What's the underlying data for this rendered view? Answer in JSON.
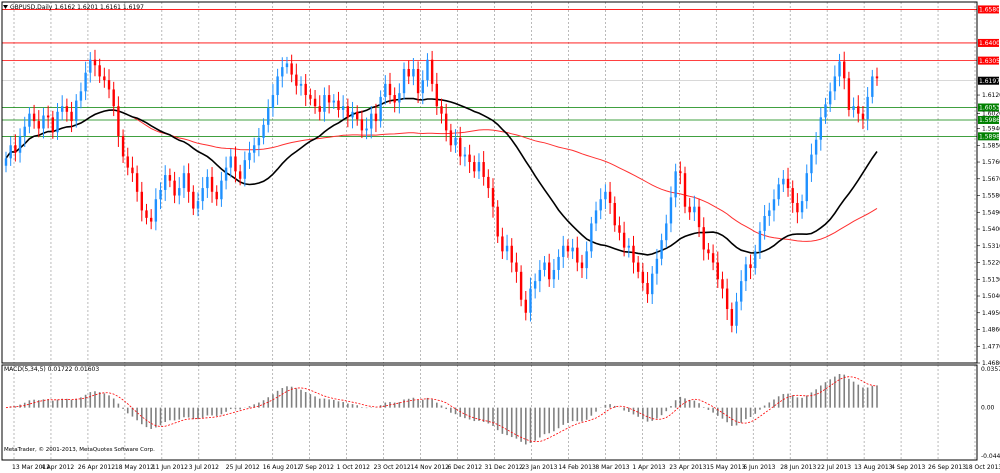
{
  "app": {
    "symbol_header": "GBPUSD,Daily  1.6162 1.6201 1.6161 1.6197",
    "copyright": "MetaTrader, © 2001-2013, MetaQuotes Software Corp.",
    "ind_label": "MACD(5,34,5) 0.01722 0.01603"
  },
  "chart_data": {
    "type": "line",
    "price_scale": [
      "1.6580",
      "1.6400",
      "1.6305",
      "1.6197",
      "1.6120",
      "1.6053",
      "1.6020",
      "1.5986",
      "1.5940",
      "1.5898",
      "1.5850",
      "1.5760",
      "1.5670",
      "1.5580",
      "1.5490",
      "1.5400",
      "1.5310",
      "1.5220",
      "1.5130",
      "1.5040",
      "1.4950",
      "1.4860",
      "1.4770",
      "1.4680"
    ],
    "price_range": [
      1.468,
      1.662
    ],
    "macd_scale": [
      "0.03573",
      "0.00",
      "-0.04468"
    ],
    "macd_range": [
      -0.04468,
      0.03573
    ],
    "dates": [
      "13 Mar 2012",
      "4 Apr 2012",
      "26 Apr 2012",
      "18 May 2012",
      "11 Jun 2012",
      "3 Jul 2012",
      "25 Jul 2012",
      "16 Aug 2012",
      "7 Sep 2012",
      "1 Oct 2012",
      "23 Oct 2012",
      "14 Nov 2012",
      "6 Dec 2012",
      "31 Dec 2012",
      "23 Jan 2013",
      "14 Feb 2013",
      "8 Mar 2013",
      "1 Apr 2013",
      "23 Apr 2013",
      "15 May 2013",
      "6 Jun 2013",
      "28 Jun 2013",
      "22 Jul 2013",
      "13 Aug 2013",
      "4 Sep 2013",
      "26 Sep 2013",
      "18 Oct 2013"
    ],
    "resistance": [
      {
        "label": "1.6580",
        "price": 1.658,
        "color": "#ff0000"
      },
      {
        "label": "1.6400",
        "price": 1.64,
        "color": "#ff0000"
      },
      {
        "label": "1.6305",
        "price": 1.6305,
        "color": "#ff0000"
      }
    ],
    "support": [
      {
        "label": "1.6053",
        "price": 1.6053,
        "color": "#008000"
      },
      {
        "label": "1.5986",
        "price": 1.5986,
        "color": "#008000"
      },
      {
        "label": "1.5898",
        "price": 1.5898,
        "color": "#008000"
      }
    ],
    "current": {
      "label": "1.6197",
      "price": 1.6197
    },
    "closes": [
      1.578,
      1.585,
      1.581,
      1.59,
      1.595,
      1.602,
      1.598,
      1.594,
      1.601,
      1.6,
      1.592,
      1.603,
      1.606,
      1.603,
      1.598,
      1.609,
      1.614,
      1.624,
      1.631,
      1.628,
      1.622,
      1.62,
      1.615,
      1.606,
      1.59,
      1.579,
      1.573,
      1.57,
      1.56,
      1.55,
      1.546,
      1.544,
      1.556,
      1.561,
      1.569,
      1.566,
      1.558,
      1.562,
      1.57,
      1.56,
      1.551,
      1.555,
      1.562,
      1.568,
      1.56,
      1.556,
      1.566,
      1.573,
      1.579,
      1.571,
      1.567,
      1.577,
      1.581,
      1.585,
      1.589,
      1.596,
      1.605,
      1.612,
      1.622,
      1.627,
      1.629,
      1.623,
      1.617,
      1.618,
      1.612,
      1.61,
      1.606,
      1.603,
      1.612,
      1.608,
      1.609,
      1.604,
      1.606,
      1.6,
      1.603,
      1.599,
      1.593,
      1.594,
      1.602,
      1.598,
      1.611,
      1.618,
      1.612,
      1.608,
      1.613,
      1.626,
      1.622,
      1.626,
      1.613,
      1.62,
      1.631,
      1.618,
      1.606,
      1.602,
      1.593,
      1.585,
      1.589,
      1.579,
      1.58,
      1.576,
      1.571,
      1.576,
      1.568,
      1.562,
      1.552,
      1.536,
      1.528,
      1.531,
      1.522,
      1.517,
      1.502,
      1.495,
      1.508,
      1.512,
      1.518,
      1.522,
      1.513,
      1.518,
      1.525,
      1.531,
      1.528,
      1.53,
      1.522,
      1.519,
      1.528,
      1.543,
      1.55,
      1.556,
      1.56,
      1.554,
      1.542,
      1.538,
      1.53,
      1.531,
      1.522,
      1.517,
      1.511,
      1.505,
      1.516,
      1.524,
      1.534,
      1.543,
      1.557,
      1.571,
      1.57,
      1.552,
      1.549,
      1.552,
      1.541,
      1.529,
      1.527,
      1.522,
      1.513,
      1.508,
      1.497,
      1.488,
      1.501,
      1.512,
      1.521,
      1.519,
      1.528,
      1.539,
      1.547,
      1.55,
      1.556,
      1.564,
      1.567,
      1.562,
      1.554,
      1.549,
      1.555,
      1.57,
      1.58,
      1.588,
      1.6,
      1.607,
      1.614,
      1.622,
      1.63,
      1.621,
      1.604,
      1.606,
      1.602,
      1.599,
      1.611,
      1.622,
      1.621
    ]
  }
}
